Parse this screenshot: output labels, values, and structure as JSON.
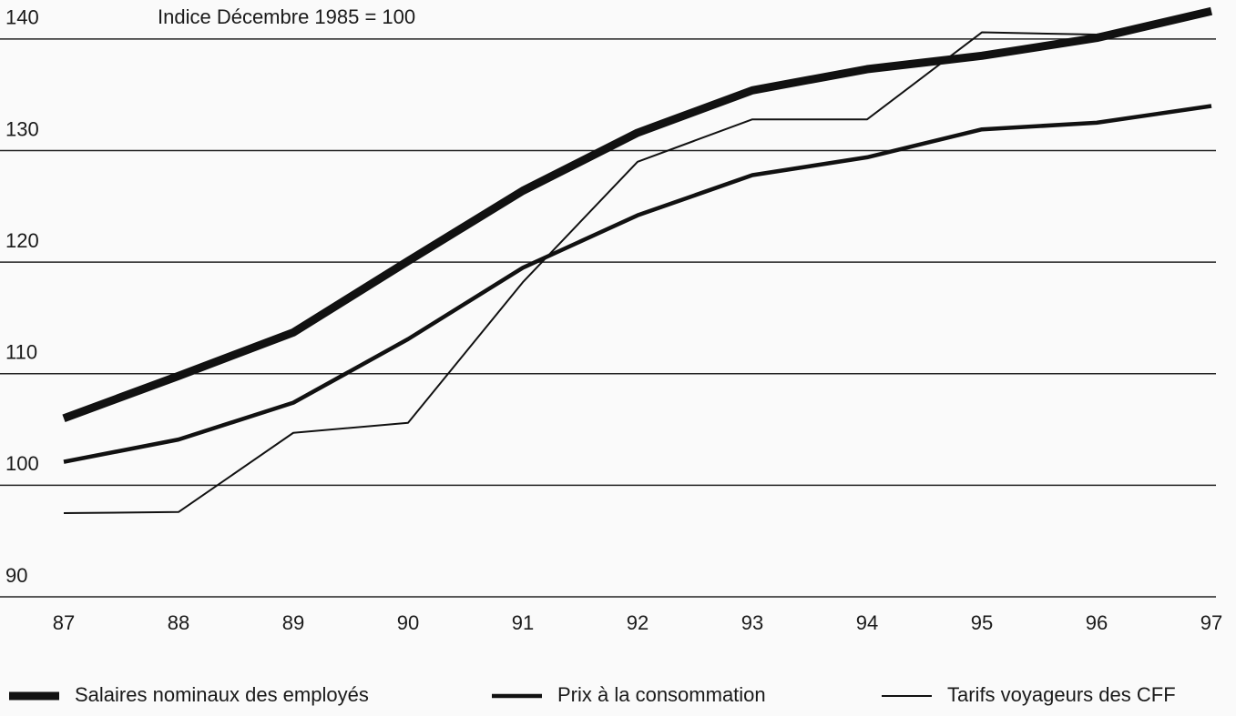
{
  "chart_data": {
    "type": "line",
    "annotation": "Indice Décembre 1985 = 100",
    "categories": [
      "87",
      "88",
      "89",
      "90",
      "91",
      "92",
      "93",
      "94",
      "95",
      "96",
      "97"
    ],
    "series": [
      {
        "name": "Salaires nominaux des employés",
        "color": "#111111",
        "values": [
          106.0,
          109.8,
          113.7,
          120.1,
          126.4,
          131.6,
          135.4,
          137.3,
          138.5,
          140.1,
          142.5
        ]
      },
      {
        "name": "Prix à la consommation",
        "color": "#111111",
        "values": [
          102.1,
          104.1,
          107.4,
          113.1,
          119.5,
          124.2,
          127.8,
          129.4,
          131.9,
          132.5,
          134.0
        ]
      },
      {
        "name": "Tarifs voyageurs des CFF",
        "color": "#111111",
        "values": [
          97.5,
          97.6,
          104.7,
          105.6,
          118.2,
          129.0,
          132.8,
          132.8,
          140.6,
          140.4,
          142.3
        ]
      }
    ],
    "ylim": [
      90,
      143.5
    ],
    "yticks": [
      90,
      100,
      110,
      120,
      130,
      140
    ],
    "grid": true,
    "legend": "bottom"
  }
}
